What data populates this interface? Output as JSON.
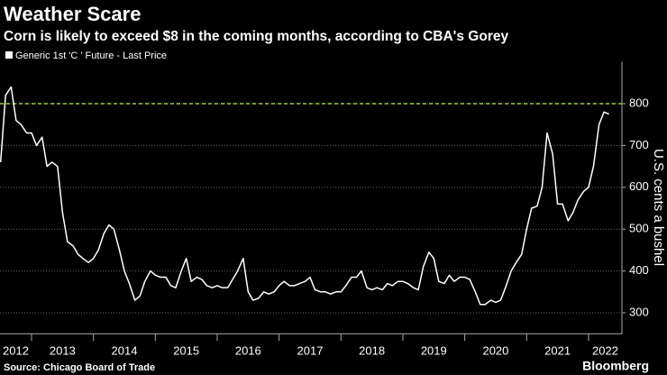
{
  "chart_data": {
    "type": "line",
    "title": "Weather Scare",
    "subtitle": "Corn is likely to exceed $8 in the coming months, according to CBA's Gorey",
    "legend": "Generic 1st 'C ' Future - Last Price",
    "y_label": "U.S. cents a bushel",
    "source": "Source: Chicago Board of Trade",
    "brand": "Bloomberg",
    "reference_line": 800,
    "reference_color": "#9acd32",
    "grid": true,
    "xlim": [
      2012.49,
      2022.54
    ],
    "xticks": [
      2012,
      2013,
      2014,
      2015,
      2016,
      2017,
      2018,
      2019,
      2020,
      2021,
      2022
    ],
    "ylim": [
      250,
      900
    ],
    "yticks": [
      300,
      400,
      500,
      600,
      700,
      800
    ],
    "x": [
      2012.5,
      2012.58,
      2012.67,
      2012.75,
      2012.83,
      2012.92,
      2013,
      2013.08,
      2013.17,
      2013.25,
      2013.33,
      2013.42,
      2013.5,
      2013.58,
      2013.67,
      2013.75,
      2013.83,
      2013.92,
      2014,
      2014.08,
      2014.17,
      2014.25,
      2014.33,
      2014.42,
      2014.5,
      2014.58,
      2014.67,
      2014.75,
      2014.83,
      2014.92,
      2015,
      2015.08,
      2015.17,
      2015.25,
      2015.33,
      2015.42,
      2015.5,
      2015.58,
      2015.67,
      2015.75,
      2015.83,
      2015.92,
      2016,
      2016.08,
      2016.17,
      2016.25,
      2016.33,
      2016.42,
      2016.5,
      2016.58,
      2016.67,
      2016.75,
      2016.83,
      2016.92,
      2017,
      2017.08,
      2017.17,
      2017.25,
      2017.33,
      2017.42,
      2017.5,
      2017.58,
      2017.67,
      2017.75,
      2017.83,
      2017.92,
      2018,
      2018.08,
      2018.17,
      2018.25,
      2018.33,
      2018.42,
      2018.5,
      2018.58,
      2018.67,
      2018.75,
      2018.83,
      2018.92,
      2019,
      2019.08,
      2019.17,
      2019.25,
      2019.33,
      2019.42,
      2019.5,
      2019.58,
      2019.67,
      2019.75,
      2019.83,
      2019.92,
      2020,
      2020.08,
      2020.17,
      2020.25,
      2020.33,
      2020.42,
      2020.5,
      2020.58,
      2020.67,
      2020.75,
      2020.83,
      2020.92,
      2021,
      2021.08,
      2021.17,
      2021.25,
      2021.33,
      2021.42,
      2021.5,
      2021.58,
      2021.67,
      2021.75,
      2021.83,
      2021.92,
      2022,
      2022.08,
      2022.17,
      2022.25,
      2022.33
    ],
    "series": [
      {
        "name": "Generic 1st 'C ' Future - Last Price",
        "color": "#ffffff",
        "values": [
          660,
          820,
          840,
          760,
          750,
          730,
          730,
          700,
          720,
          650,
          660,
          650,
          540,
          470,
          460,
          440,
          430,
          420,
          430,
          450,
          490,
          510,
          500,
          450,
          400,
          370,
          330,
          340,
          375,
          400,
          390,
          385,
          385,
          365,
          360,
          400,
          430,
          375,
          385,
          380,
          365,
          360,
          365,
          360,
          360,
          380,
          400,
          430,
          350,
          330,
          335,
          350,
          345,
          350,
          365,
          375,
          365,
          365,
          370,
          375,
          385,
          355,
          350,
          350,
          345,
          350,
          350,
          365,
          385,
          385,
          400,
          360,
          355,
          360,
          355,
          370,
          365,
          375,
          375,
          370,
          360,
          355,
          410,
          445,
          430,
          375,
          370,
          390,
          375,
          385,
          385,
          380,
          350,
          320,
          320,
          330,
          325,
          330,
          365,
          400,
          420,
          440,
          500,
          550,
          555,
          600,
          730,
          680,
          560,
          560,
          520,
          540,
          570,
          590,
          600,
          650,
          750,
          780,
          775
        ]
      }
    ]
  }
}
